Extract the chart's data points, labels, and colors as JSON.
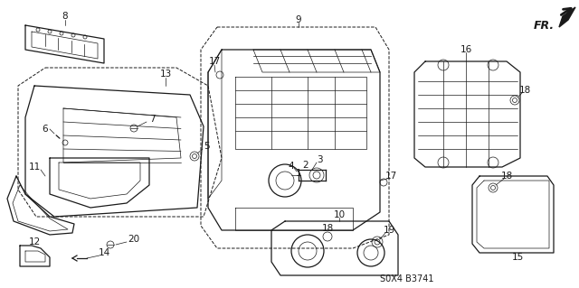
{
  "bg_color": "#ffffff",
  "line_color": "#1a1a1a",
  "diagram_code": "S0X4 B3741",
  "font_size": 7.5,
  "lw_main": 0.9,
  "lw_thin": 0.5,
  "lw_dash": 0.7
}
